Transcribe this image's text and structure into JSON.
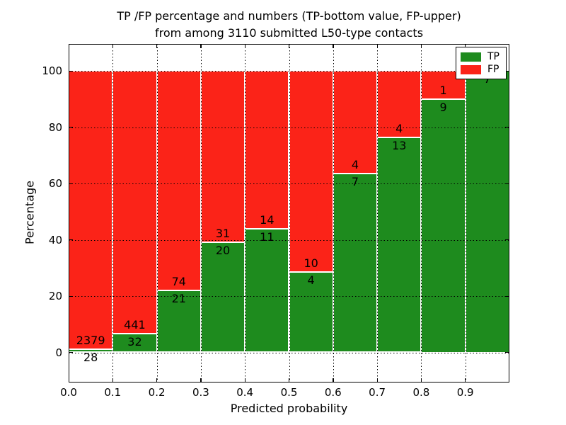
{
  "title": {
    "line1": "TP /FP percentage and numbers (TP-bottom value, FP-upper)",
    "line2": "from among 3110 submitted L50-type contacts"
  },
  "x_axis": {
    "label": "Predicted probability",
    "ticks": [
      "0.0",
      "0.1",
      "0.2",
      "0.3",
      "0.4",
      "0.5",
      "0.6",
      "0.7",
      "0.8",
      "0.9"
    ]
  },
  "y_axis": {
    "label": "Percentage",
    "ticks": [
      "0",
      "20",
      "40",
      "60",
      "80",
      "100"
    ]
  },
  "legend": {
    "items": [
      {
        "label": "TP",
        "color": "#1e8b1e"
      },
      {
        "label": "FP",
        "color": "#fb2318"
      }
    ]
  },
  "chart_data": {
    "type": "bar",
    "subtype": "stacked-percentage",
    "title": "TP /FP percentage and numbers (TP-bottom value, FP-upper) from among 3110 submitted L50-type contacts",
    "xlabel": "Predicted probability",
    "ylabel": "Percentage",
    "total_contacts": 3110,
    "bin_edges": [
      0.0,
      0.1,
      0.2,
      0.3,
      0.4,
      0.5,
      0.6,
      0.7,
      0.8,
      0.9,
      1.0
    ],
    "categories": [
      "0.0-0.1",
      "0.1-0.2",
      "0.2-0.3",
      "0.3-0.4",
      "0.4-0.5",
      "0.5-0.6",
      "0.6-0.7",
      "0.7-0.8",
      "0.8-0.9",
      "0.9-1.0"
    ],
    "series": [
      {
        "name": "TP",
        "color": "#1e8b1e",
        "counts": [
          28,
          32,
          21,
          20,
          11,
          4,
          7,
          13,
          9,
          7
        ]
      },
      {
        "name": "FP",
        "color": "#fb2318",
        "counts": [
          2379,
          441,
          74,
          31,
          14,
          10,
          4,
          4,
          1,
          0
        ]
      }
    ],
    "tp_percent_of_bin": [
      1.2,
      6.8,
      22.1,
      39.2,
      44.0,
      28.6,
      63.6,
      76.5,
      90.0,
      100.0
    ],
    "xlim": [
      0.0,
      1.0
    ],
    "ylim": [
      -10,
      110
    ],
    "y_gridlines": [
      0,
      20,
      40,
      60,
      80,
      100
    ],
    "grid": true,
    "legend_position": "upper right"
  }
}
